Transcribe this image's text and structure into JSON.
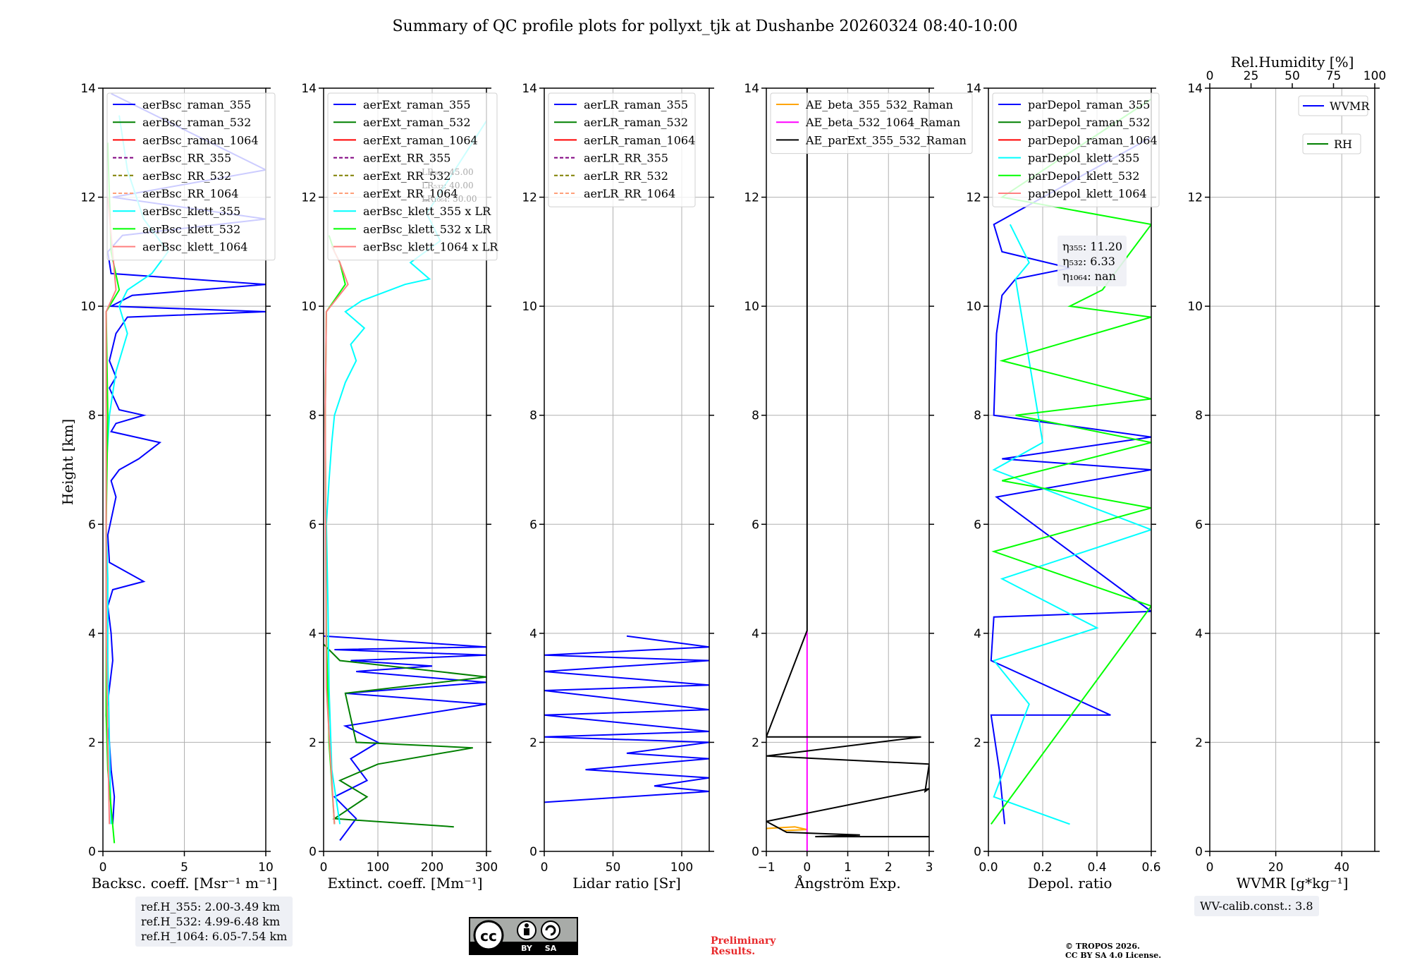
{
  "title": "Summary of QC profile plots for pollyxt_tjk at Dushanbe 20260324 08:40-10:00",
  "colors": {
    "raman_355": "#0000ff",
    "raman_532": "#008000",
    "raman_1064": "#ff0000",
    "rr_355": "#800080",
    "rr_532": "#808000",
    "rr_1064": "#ffa07a",
    "klett_355": "#00ffff",
    "klett_532": "#00ff00",
    "klett_1064": "#ff8080",
    "ae1": "#ffa500",
    "ae2": "#ff00ff",
    "ae3": "#000000"
  },
  "chart_data": [
    {
      "type": "line",
      "ylabel": "Height [km]",
      "xlabel": "Backsc. coeff. [Msr⁻¹ m⁻¹]",
      "xlim": [
        0,
        10
      ],
      "ylim": [
        0,
        14
      ],
      "xticks": [
        "0",
        "5",
        "10"
      ],
      "xtick_values": [
        0,
        5,
        10
      ],
      "yticks": [
        "0",
        "2",
        "4",
        "6",
        "8",
        "10",
        "12",
        "14"
      ],
      "legend": [
        "aerBsc_raman_355",
        "aerBsc_raman_532",
        "aerBsc_raman_1064",
        "aerBsc_RR_355",
        "aerBsc_RR_532",
        "aerBsc_RR_1064",
        "aerBsc_klett_355",
        "aerBsc_klett_532",
        "aerBsc_klett_1064"
      ],
      "legend_styles": [
        "raman_355",
        "raman_532",
        "raman_1064",
        "rr_355",
        "rr_532",
        "rr_1064",
        "klett_355",
        "klett_532",
        "klett_1064"
      ],
      "series": [
        {
          "name": "aerBsc_raman_355",
          "color": "raman_355",
          "x": [
            0.6,
            0.7,
            0.5,
            0.4,
            0.2,
            0.6,
            0.5,
            0.3,
            0.6,
            2.5,
            0.4,
            0.3,
            0.8,
            0.5,
            1.0,
            2.2,
            3.5,
            0.5,
            0.8,
            2.5,
            1.0,
            0.4,
            0.8,
            0.4,
            0.8,
            1.5,
            10,
            0.5,
            1.8,
            10,
            0.5,
            0.3,
            1.2,
            10,
            0.6,
            10,
            0.5
          ],
          "y": [
            0.5,
            1.0,
            1.5,
            2.0,
            2.5,
            3.5,
            4.0,
            4.5,
            4.8,
            4.95,
            5.3,
            5.8,
            6.5,
            6.8,
            7.0,
            7.2,
            7.5,
            7.7,
            7.85,
            8.0,
            8.1,
            8.5,
            8.7,
            9.0,
            9.5,
            9.8,
            9.9,
            10.0,
            10.2,
            10.4,
            10.6,
            11.0,
            11.3,
            11.6,
            12.0,
            12.5,
            13.9
          ]
        },
        {
          "name": "aerBsc_klett_355",
          "color": "klett_355",
          "x": [
            0.5,
            0.4,
            0.3,
            0.3,
            0.2,
            0.2,
            0.4,
            0.8,
            1.5,
            1.0,
            1.5,
            3.0,
            4.0,
            2.5,
            1.5,
            1.0
          ],
          "y": [
            0.5,
            2.0,
            3.5,
            5.0,
            6.0,
            7.0,
            8.0,
            8.8,
            9.5,
            10.0,
            10.3,
            10.6,
            11.0,
            11.6,
            12.5,
            13.5
          ]
        },
        {
          "name": "aerBsc_klett_532",
          "color": "klett_532",
          "x": [
            0.7,
            0.5,
            0.3,
            0.2,
            0.2,
            0.2,
            0.3,
            0.2,
            1.0,
            0.5,
            0.3
          ],
          "y": [
            0.15,
            0.8,
            1.5,
            2.5,
            4.0,
            6.0,
            8.0,
            9.9,
            10.3,
            11.0,
            13.0
          ]
        },
        {
          "name": "aerBsc_klett_1064",
          "color": "klett_1064",
          "x": [
            0.4,
            0.3,
            0.2,
            0.2,
            0.2,
            0.8,
            0.3
          ],
          "y": [
            0.5,
            2.0,
            4.0,
            8.0,
            9.9,
            10.3,
            12.0
          ]
        }
      ],
      "annotations": [
        "ref.H_355: 2.00-3.49 km",
        "ref.H_532: 4.99-6.48 km",
        "ref.H_1064: 6.05-7.54 km"
      ]
    },
    {
      "type": "line",
      "xlabel": "Extinct. coeff. [Mm⁻¹]",
      "xlim": [
        0,
        300
      ],
      "ylim": [
        0,
        14
      ],
      "xticks": [
        "0",
        "100",
        "200",
        "300"
      ],
      "xtick_values": [
        0,
        100,
        200,
        300
      ],
      "yticks": [
        "0",
        "2",
        "4",
        "6",
        "8",
        "10",
        "12",
        "14"
      ],
      "legend": [
        "aerExt_raman_355",
        "aerExt_raman_532",
        "aerExt_raman_1064",
        "aerExt_RR_355",
        "aerExt_RR_532",
        "aerExt_RR_1064",
        "aerBsc_klett_355 x LR",
        "aerBsc_klett_532 x LR",
        "aerBsc_klett_1064 x LR"
      ],
      "legend_styles": [
        "raman_355",
        "raman_532",
        "raman_1064",
        "rr_355",
        "rr_532",
        "rr_1064",
        "klett_355",
        "klett_532",
        "klett_1064"
      ],
      "series": [
        {
          "name": "aerExt_raman_355",
          "color": "raman_355",
          "x": [
            30,
            60,
            20,
            80,
            50,
            100,
            40,
            300,
            40,
            300,
            60,
            200,
            50,
            300,
            20,
            300,
            0
          ],
          "y": [
            0.2,
            0.6,
            1.0,
            1.3,
            1.7,
            2.0,
            2.3,
            2.7,
            2.9,
            3.1,
            3.3,
            3.4,
            3.5,
            3.6,
            3.7,
            3.75,
            3.95
          ]
        },
        {
          "name": "aerExt_raman_532",
          "color": "raman_532",
          "x": [
            240,
            20,
            80,
            30,
            100,
            275,
            60,
            40,
            300,
            30,
            0
          ],
          "y": [
            0.45,
            0.6,
            1.0,
            1.3,
            1.6,
            1.9,
            2.0,
            2.9,
            3.2,
            3.5,
            3.8
          ]
        },
        {
          "name": "aerBsc_klett_355 x LR",
          "color": "klett_355",
          "x": [
            30,
            15,
            10,
            8,
            5,
            10,
            15,
            20,
            40,
            60,
            50,
            75,
            40,
            70,
            150,
            195,
            160,
            215,
            190,
            300
          ],
          "y": [
            0.5,
            1.5,
            3.0,
            4.5,
            6.0,
            6.8,
            7.5,
            8.0,
            8.6,
            9.0,
            9.3,
            9.6,
            9.9,
            10.1,
            10.4,
            10.5,
            10.8,
            11.2,
            11.7,
            13.4
          ]
        },
        {
          "name": "aerBsc_klett_532 x LR",
          "color": "klett_532",
          "x": [
            20,
            10,
            5,
            3,
            5,
            40,
            30,
            20,
            10
          ],
          "y": [
            0.5,
            2.0,
            4.0,
            8.0,
            9.9,
            10.4,
            10.8,
            11.0,
            11.3
          ]
        },
        {
          "name": "aerBsc_klett_1064 x LR",
          "color": "klett_1064",
          "x": [
            20,
            5,
            3,
            5,
            45,
            30,
            15
          ],
          "y": [
            0.5,
            3.0,
            8.0,
            9.9,
            10.4,
            10.8,
            11.1
          ]
        }
      ],
      "annotations": [
        "LR₃₅₅: 45.00",
        "LR₅₃₂: 40.00",
        "LR₁₀₆₄: 50.00"
      ]
    },
    {
      "type": "line",
      "xlabel": "Lidar ratio [Sr]",
      "xlim": [
        0,
        120
      ],
      "ylim": [
        0,
        14
      ],
      "xticks": [
        "0",
        "50",
        "100"
      ],
      "xtick_values": [
        0,
        50,
        100
      ],
      "yticks": [
        "0",
        "2",
        "4",
        "6",
        "8",
        "10",
        "12",
        "14"
      ],
      "legend": [
        "aerLR_raman_355",
        "aerLR_raman_532",
        "aerLR_raman_1064",
        "aerLR_RR_355",
        "aerLR_RR_532",
        "aerLR_RR_1064"
      ],
      "legend_styles": [
        "raman_355",
        "raman_532",
        "raman_1064",
        "rr_355",
        "rr_532",
        "rr_1064"
      ],
      "series": [
        {
          "name": "aerLR_raman_355",
          "color": "raman_355",
          "x": [
            0,
            120,
            80,
            120,
            30,
            120,
            60,
            120,
            0,
            120,
            0,
            120,
            0,
            120,
            0,
            120,
            0,
            120,
            60
          ],
          "y": [
            0.9,
            1.1,
            1.2,
            1.35,
            1.5,
            1.7,
            1.8,
            2.0,
            2.1,
            2.2,
            2.5,
            2.6,
            2.95,
            3.05,
            3.3,
            3.5,
            3.6,
            3.75,
            3.95
          ]
        }
      ]
    },
    {
      "type": "line",
      "xlabel": "Ångström Exp.",
      "xlim": [
        -1,
        3
      ],
      "ylim": [
        0,
        14
      ],
      "xticks": [
        "−1",
        "0",
        "1",
        "2",
        "3"
      ],
      "xtick_values": [
        -1,
        0,
        1,
        2,
        3
      ],
      "yticks": [
        "0",
        "2",
        "4",
        "6",
        "8",
        "10",
        "12",
        "14"
      ],
      "legend": [
        "AE_beta_355_532_Raman",
        "AE_beta_532_1064_Raman",
        "AE_parExt_355_532_Raman"
      ],
      "legend_styles": [
        "ae1",
        "ae2",
        "ae3"
      ],
      "series": [
        {
          "name": "AE_beta_355_532_Raman",
          "color": "ae1",
          "x": [
            -1,
            -0.3,
            0,
            -0.6
          ],
          "y": [
            0.42,
            0.45,
            0.4,
            0.38
          ]
        },
        {
          "name": "AE_beta_532_1064_Raman",
          "color": "ae2",
          "x": [
            0,
            0
          ],
          "y": [
            0.0,
            4.05
          ]
        },
        {
          "name": "AE_parExt_355_532_Raman",
          "color": "ae3",
          "x": [
            3,
            0.2,
            1.3,
            -0.5,
            -1,
            3,
            2.9,
            3,
            3,
            -1,
            2.8,
            -1,
            0,
            0
          ],
          "y": [
            0.27,
            0.27,
            0.3,
            0.35,
            0.55,
            1.15,
            1.1,
            1.6,
            1.6,
            1.75,
            2.1,
            2.1,
            4.05,
            14.0
          ]
        }
      ]
    },
    {
      "type": "line",
      "xlabel": "Depol. ratio",
      "xlim": [
        0,
        0.6
      ],
      "ylim": [
        0,
        14
      ],
      "xticks": [
        "0.0",
        "0.2",
        "0.4",
        "0.6"
      ],
      "xtick_values": [
        0,
        0.2,
        0.4,
        0.6
      ],
      "yticks": [
        "0",
        "2",
        "4",
        "6",
        "8",
        "10",
        "12",
        "14"
      ],
      "legend": [
        "parDepol_raman_355",
        "parDepol_raman_532",
        "parDepol_raman_1064",
        "parDepol_klett_355",
        "parDepol_klett_532",
        "parDepol_klett_1064"
      ],
      "legend_styles": [
        "raman_355",
        "raman_532",
        "raman_1064",
        "klett_355",
        "klett_532",
        "klett_1064"
      ],
      "series": [
        {
          "name": "parDepol_raman_355",
          "color": "raman_355",
          "x": [
            0.06,
            0.04,
            0.01,
            0.45,
            0.01,
            0.02,
            0.6,
            0.03,
            0.6,
            0.05,
            0.6,
            0.02,
            0.03,
            0.05,
            0.1,
            0.3,
            0.05,
            0.02,
            0.6
          ],
          "y": [
            0.5,
            1.5,
            2.5,
            2.5,
            3.5,
            4.3,
            4.4,
            6.5,
            7.0,
            7.2,
            7.6,
            8.0,
            9.5,
            10.2,
            10.5,
            10.7,
            11.0,
            11.5,
            13.1
          ]
        },
        {
          "name": "parDepol_klett_355",
          "color": "klett_355",
          "x": [
            0.3,
            0.02,
            0.15,
            0.02,
            0.4,
            0.05,
            0.6,
            0.02,
            0.2,
            0.1,
            0.15,
            0.08
          ],
          "y": [
            0.5,
            1.0,
            2.7,
            3.5,
            4.1,
            5.0,
            5.9,
            7.0,
            7.5,
            10.5,
            10.8,
            11.5
          ]
        },
        {
          "name": "parDepol_klett_532",
          "color": "klett_532",
          "x": [
            0.01,
            0.6,
            0.02,
            0.6,
            0.05,
            0.6,
            0.1,
            0.6,
            0.05,
            0.6,
            0.3,
            0.42,
            0.6,
            0.05,
            0.6
          ],
          "y": [
            0.5,
            4.5,
            5.5,
            6.3,
            6.8,
            7.5,
            8.0,
            8.3,
            9.0,
            9.8,
            10.0,
            10.3,
            11.5,
            12.0,
            13.8
          ]
        }
      ],
      "annotations": [
        "η₃₅₅: 11.20",
        "η₅₃₂: 6.33",
        "η₁₀₆₄: nan"
      ]
    },
    {
      "type": "line",
      "xlabel": "WVMR [g*kg⁻¹]",
      "x2label": "Rel.Humidity [%]",
      "xlim": [
        0,
        50
      ],
      "x2lim": [
        0,
        100
      ],
      "ylim": [
        0,
        14
      ],
      "xticks": [
        "0",
        "20",
        "40"
      ],
      "xtick_values": [
        0,
        20,
        40
      ],
      "x2ticks": [
        "0",
        "25",
        "50",
        "75",
        "100"
      ],
      "x2tick_values": [
        0,
        25,
        50,
        75,
        100
      ],
      "yticks": [
        "0",
        "2",
        "4",
        "6",
        "8",
        "10",
        "12",
        "14"
      ],
      "legend": [
        "WVMR",
        "RH"
      ],
      "legend_styles": [
        "raman_355",
        "raman_532"
      ],
      "series": [],
      "annotations": [
        "WV-calib.const.: 3.8"
      ]
    }
  ],
  "footer": {
    "preliminary": [
      "Preliminary",
      "Results."
    ],
    "copyright": [
      "© TROPOS 2026.",
      "CC BY SA 4.0 License."
    ],
    "cc_badge": [
      "BY",
      "SA"
    ]
  }
}
